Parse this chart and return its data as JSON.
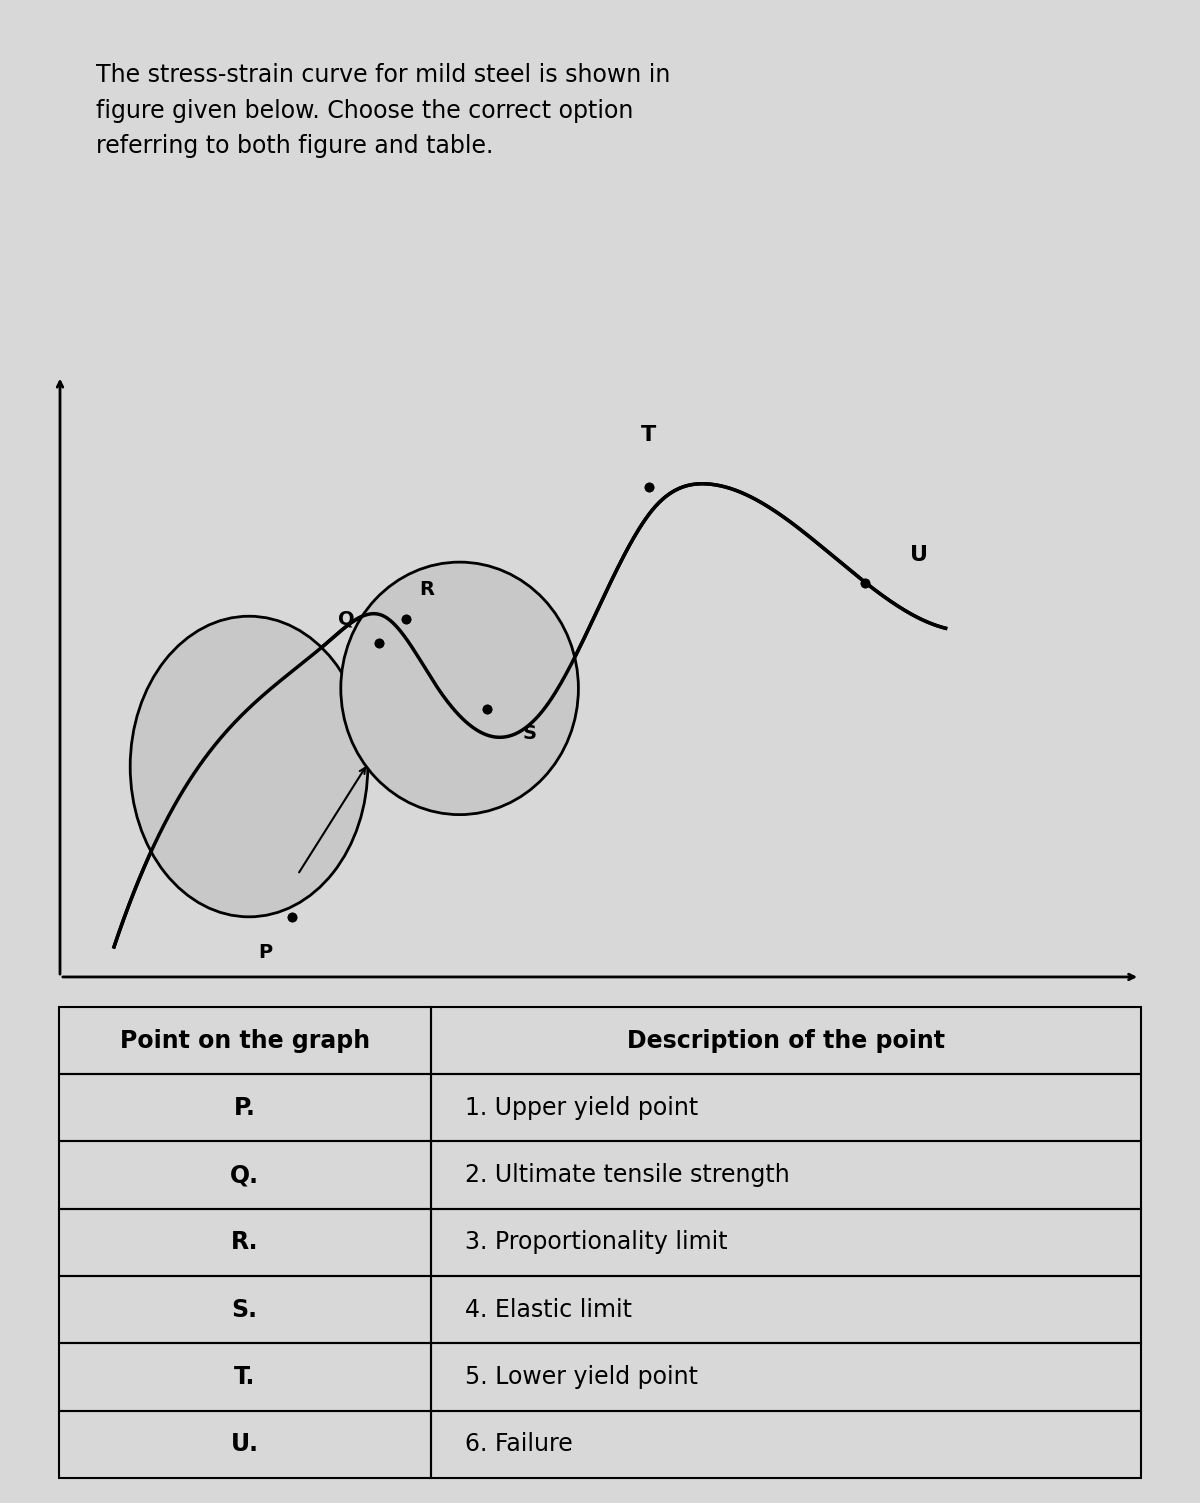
{
  "title_text": "The stress-strain curve for mild steel is shown in\nfigure given below. Choose the correct option\nreferring to both figure and table.",
  "bg_color": "#d8d8d8",
  "table_header": [
    "Point on the graph",
    "Description of the point"
  ],
  "table_rows": [
    [
      "P.",
      "1. Upper yield point"
    ],
    [
      "Q.",
      "2. Ultimate tensile strength"
    ],
    [
      "R.",
      "3. Proportionality limit"
    ],
    [
      "S.",
      "4. Elastic limit"
    ],
    [
      "T.",
      "5. Lower yield point"
    ],
    [
      "U.",
      "6. Failure"
    ]
  ],
  "point_labels": [
    "P",
    "Q",
    "R",
    "S",
    "T",
    "U"
  ],
  "curve_color": "#000000",
  "text_color": "#000000",
  "table_text_color": "#000000",
  "title_fontsize": 17,
  "table_fontsize": 16
}
